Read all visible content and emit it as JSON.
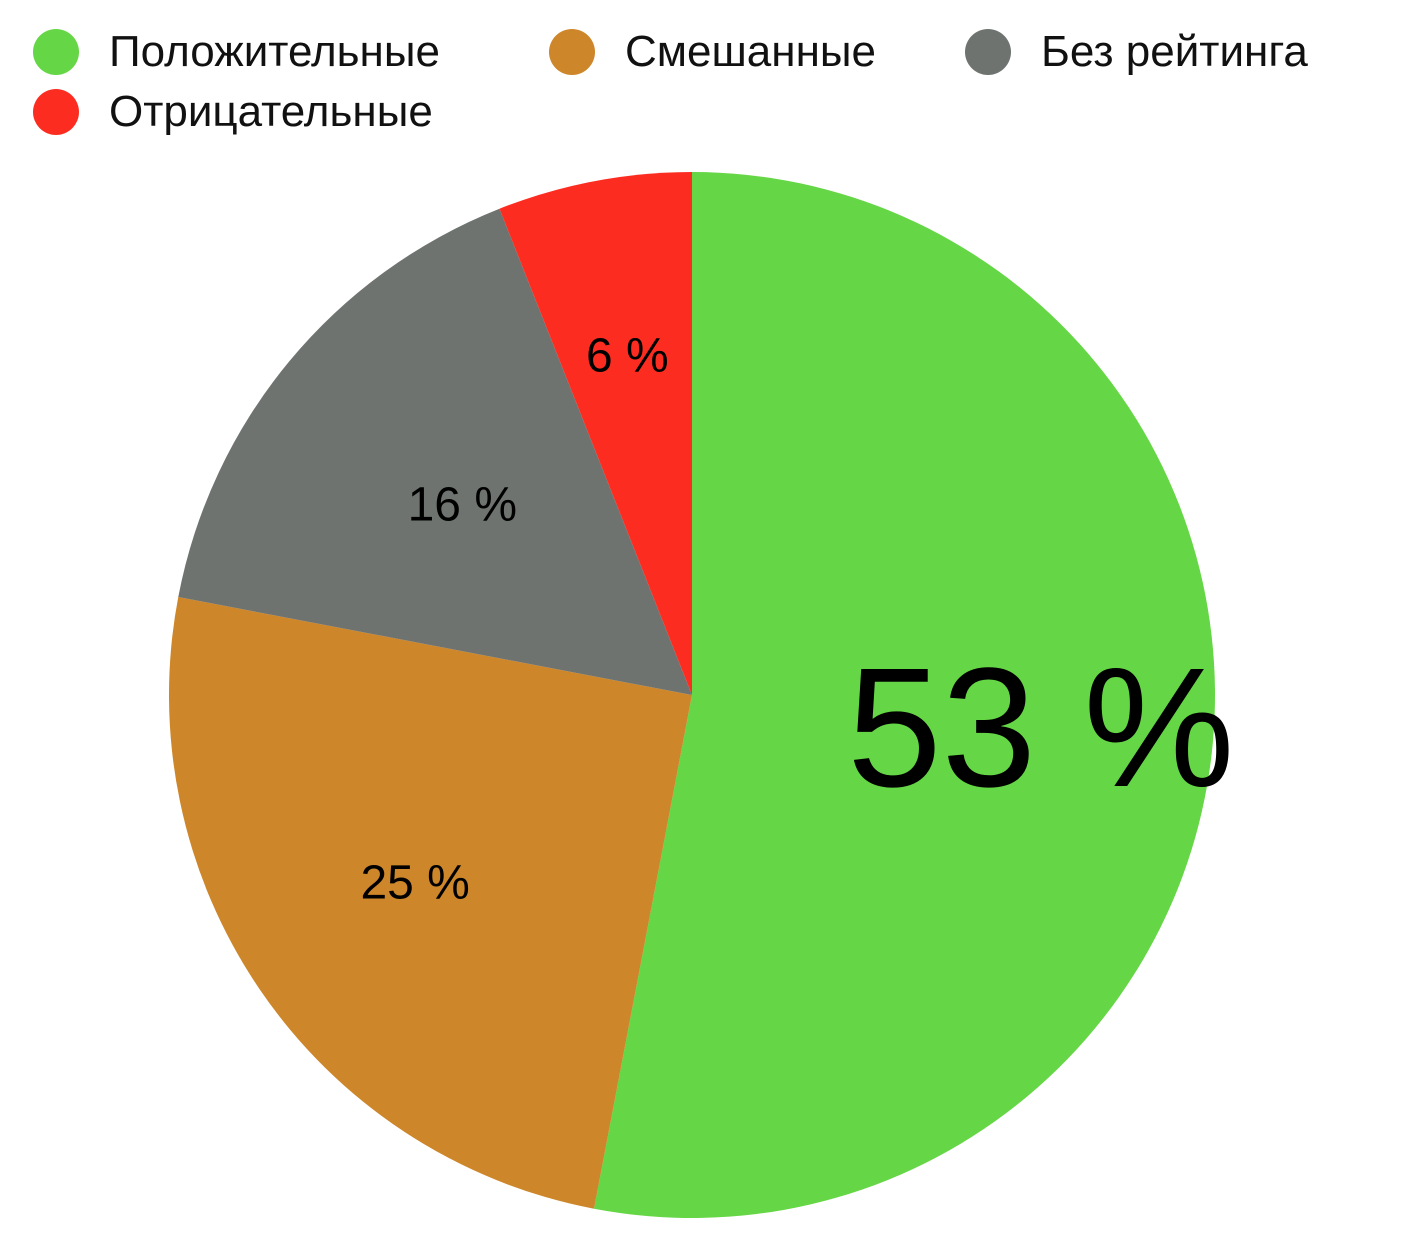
{
  "chart_data": {
    "type": "pie",
    "start_angle": "12 o'clock",
    "direction": "clockwise",
    "slices": [
      {
        "label": "Положительные",
        "value": 53,
        "value_label": "53 %",
        "color": "#65d645"
      },
      {
        "label": "Смешанные",
        "value": 25,
        "value_label": "25 %",
        "color": "#cd8629"
      },
      {
        "label": "Без рейтинга",
        "value": 16,
        "value_label": "16 %",
        "color": "#6e7370"
      },
      {
        "label": "Отрицательные",
        "value": 6,
        "value_label": "6 %",
        "color": "#fc2d20"
      }
    ],
    "legend": {
      "placement": "top-left",
      "items": [
        "Положительные",
        "Смешанные",
        "Без рейтинга",
        "Отрицательные"
      ]
    }
  }
}
